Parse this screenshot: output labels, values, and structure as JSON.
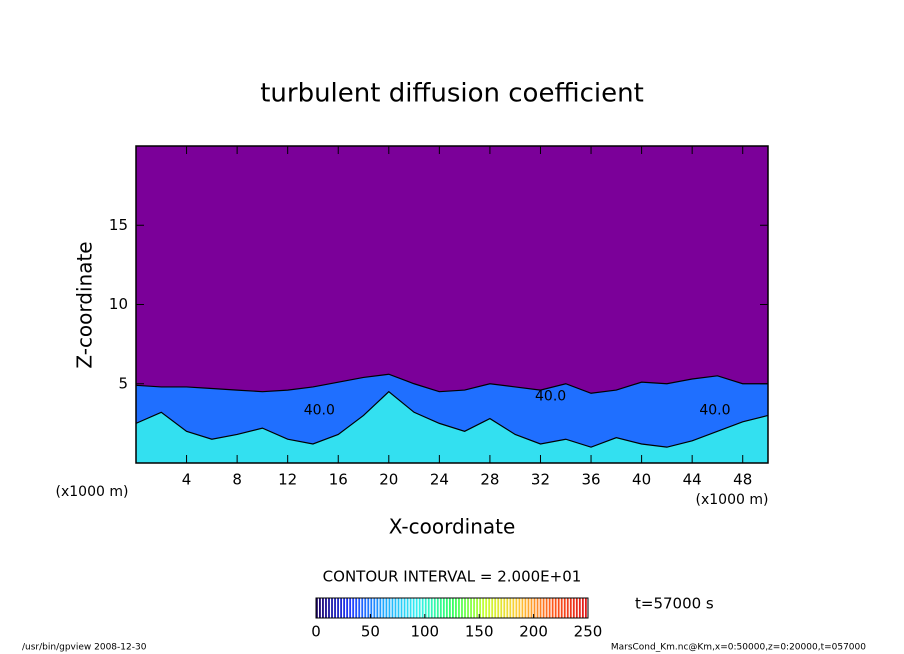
{
  "chart_data": {
    "type": "contour",
    "title": "turbulent diffusion coefficient",
    "xlabel": "X-coordinate",
    "ylabel": "Z-coordinate",
    "x_unit_label": "(x1000 m)",
    "y_unit_label": "(x1000 m)",
    "xlim": [
      0,
      50
    ],
    "ylim": [
      0,
      20
    ],
    "xticks": [
      4,
      8,
      12,
      16,
      20,
      24,
      28,
      32,
      36,
      40,
      44,
      48
    ],
    "yticks": [
      5,
      10,
      15
    ],
    "background_color": "#7b0099",
    "x": [
      0,
      2,
      4,
      6,
      8,
      10,
      12,
      14,
      16,
      18,
      20,
      22,
      24,
      26,
      28,
      30,
      32,
      34,
      36,
      38,
      40,
      42,
      44,
      46,
      48,
      50
    ],
    "series": [
      {
        "color": "#1f6fff",
        "values": [
          4.9,
          4.8,
          4.8,
          4.7,
          4.6,
          4.5,
          4.6,
          4.8,
          5.1,
          5.4,
          5.6,
          5.0,
          4.5,
          4.6,
          5.0,
          4.8,
          4.6,
          5.0,
          4.4,
          4.6,
          5.1,
          5.0,
          5.3,
          5.5,
          5.0,
          5.0
        ]
      },
      {
        "color": "#33e0f0",
        "values": [
          2.5,
          3.2,
          2.0,
          1.5,
          1.8,
          2.2,
          1.5,
          1.2,
          1.8,
          3.0,
          4.5,
          3.2,
          2.5,
          2.0,
          2.8,
          1.8,
          1.2,
          1.5,
          1.0,
          1.6,
          1.2,
          1.0,
          1.4,
          2.0,
          2.6,
          3.0
        ]
      }
    ],
    "contour_labels": [
      {
        "x": 14.5,
        "y": 3.3,
        "label": "40.0"
      },
      {
        "x": 32.8,
        "y": 4.2,
        "label": "40.0"
      },
      {
        "x": 45.8,
        "y": 3.3,
        "label": "40.0"
      }
    ],
    "contour_interval_label": "CONTOUR INTERVAL = 2.000E+01",
    "time_label": "t=57000 s",
    "colorbar": {
      "lim": [
        0,
        250
      ],
      "ticks": [
        0,
        50,
        100,
        150,
        200,
        250
      ],
      "colormap": [
        "#1a0066",
        "#1f3cff",
        "#1fa8ff",
        "#33f0f0",
        "#33ff66",
        "#c8ff33",
        "#ffc833",
        "#ff5a1a",
        "#e01a1a"
      ]
    },
    "footer_left": "/usr/bin/gpview  2008-12-30",
    "footer_right": "MarsCond_Km.nc@Km,x=0:50000,z=0:20000,t=057000"
  }
}
